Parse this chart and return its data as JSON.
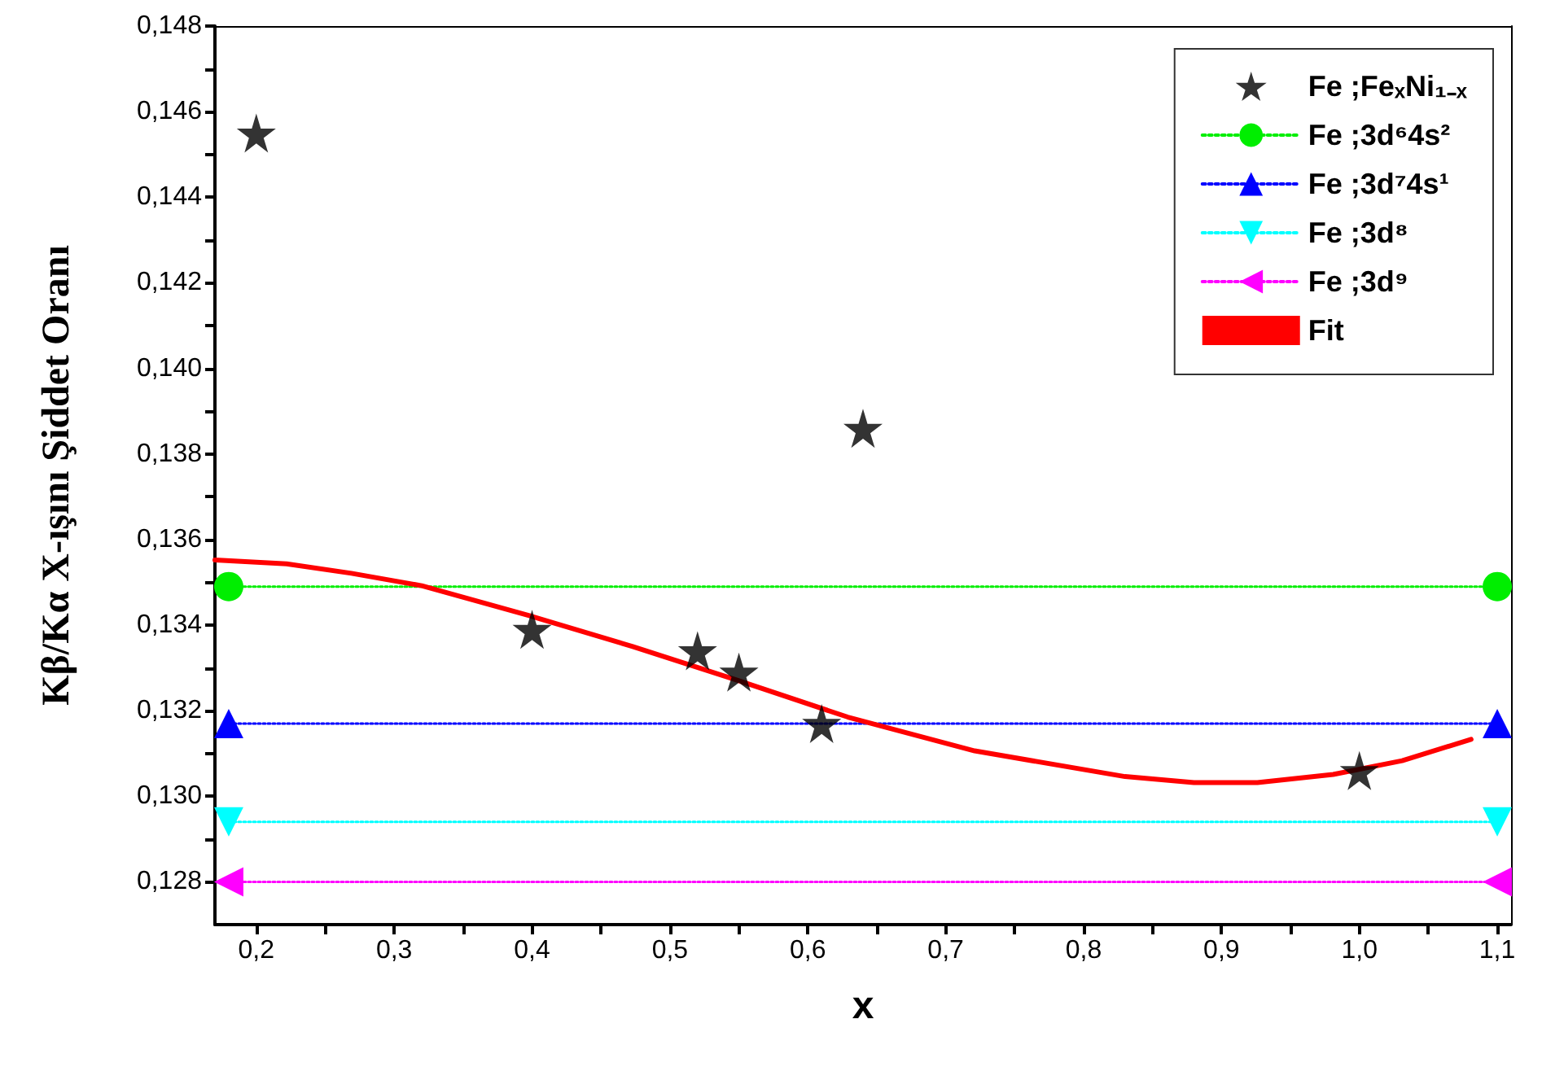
{
  "chart_data": {
    "type": "line",
    "xlabel": "x",
    "ylabel": "Kβ/Kα X-ışını Şiddet Oranı",
    "xlim": [
      0.17,
      1.11
    ],
    "ylim": [
      0.127,
      0.148
    ],
    "xticks": [
      {
        "value": 0.2,
        "label": "0,2"
      },
      {
        "value": 0.25,
        "label": null
      },
      {
        "value": 0.3,
        "label": "0,3"
      },
      {
        "value": 0.35,
        "label": null
      },
      {
        "value": 0.4,
        "label": "0,4"
      },
      {
        "value": 0.45,
        "label": null
      },
      {
        "value": 0.5,
        "label": "0,5"
      },
      {
        "value": 0.55,
        "label": null
      },
      {
        "value": 0.6,
        "label": "0,6"
      },
      {
        "value": 0.65,
        "label": null
      },
      {
        "value": 0.7,
        "label": "0,7"
      },
      {
        "value": 0.75,
        "label": null
      },
      {
        "value": 0.8,
        "label": "0,8"
      },
      {
        "value": 0.85,
        "label": null
      },
      {
        "value": 0.9,
        "label": "0,9"
      },
      {
        "value": 0.95,
        "label": null
      },
      {
        "value": 1.0,
        "label": "1,0"
      },
      {
        "value": 1.05,
        "label": null
      },
      {
        "value": 1.1,
        "label": "1,1"
      }
    ],
    "yticks": [
      {
        "value": 0.128,
        "label": "0,128"
      },
      {
        "value": 0.129,
        "label": null
      },
      {
        "value": 0.13,
        "label": "0,130"
      },
      {
        "value": 0.131,
        "label": null
      },
      {
        "value": 0.132,
        "label": "0,132"
      },
      {
        "value": 0.133,
        "label": null
      },
      {
        "value": 0.134,
        "label": "0,134"
      },
      {
        "value": 0.135,
        "label": null
      },
      {
        "value": 0.136,
        "label": "0,136"
      },
      {
        "value": 0.137,
        "label": null
      },
      {
        "value": 0.138,
        "label": "0,138"
      },
      {
        "value": 0.139,
        "label": null
      },
      {
        "value": 0.14,
        "label": "0,140"
      },
      {
        "value": 0.141,
        "label": null
      },
      {
        "value": 0.142,
        "label": "0,142"
      },
      {
        "value": 0.143,
        "label": null
      },
      {
        "value": 0.144,
        "label": "0,144"
      },
      {
        "value": 0.145,
        "label": null
      },
      {
        "value": 0.146,
        "label": "0,146"
      },
      {
        "value": 0.147,
        "label": null
      },
      {
        "value": 0.148,
        "label": "0,148"
      }
    ],
    "grid": false,
    "legend": "top right",
    "series": [
      {
        "name": "Fe ;FeₓNi₁₋ₓ",
        "type": "scatter",
        "marker": "star",
        "color": "#000000",
        "x": [
          0.2,
          0.4,
          0.52,
          0.55,
          0.61,
          0.64,
          1.0
        ],
        "values": [
          0.1455,
          0.1339,
          0.1334,
          0.1329,
          0.1317,
          0.1386,
          0.1306
        ]
      },
      {
        "name": "Fe ;3d⁶4s²",
        "marker": "circle",
        "line_style": "dotted",
        "color": "#00ee00",
        "x": [
          0.18,
          1.1
        ],
        "values": [
          0.1349,
          0.1349
        ]
      },
      {
        "name": "Fe ;3d⁷4s¹",
        "marker": "triangle",
        "line_style": "dotted",
        "color": "#0000ff",
        "x": [
          0.18,
          1.1
        ],
        "values": [
          0.1317,
          0.1317
        ]
      },
      {
        "name": "Fe ;3d⁸",
        "marker": "triangle_down",
        "line_style": "dotted",
        "color": "#00ffff",
        "x": [
          0.18,
          1.1
        ],
        "values": [
          0.1294,
          0.1294
        ]
      },
      {
        "name": "Fe ;3d⁹",
        "marker": "triangle_left",
        "line_style": "dotted",
        "color": "#ff00ff",
        "x": [
          0.18,
          1.1
        ],
        "values": [
          0.128,
          0.128
        ]
      },
      {
        "name": "Fit",
        "marker": "none",
        "line_style": "solid",
        "color": "#ff0000",
        "x": [
          0.17,
          0.222,
          0.269,
          0.32,
          0.398,
          0.473,
          0.55,
          0.629,
          0.721,
          0.83,
          0.88,
          0.926,
          0.981,
          1.031,
          1.081
        ],
        "values": [
          0.13552,
          0.13543,
          0.13521,
          0.13492,
          0.13422,
          0.1335,
          0.1327,
          0.13185,
          0.13106,
          0.13046,
          0.13032,
          0.13032,
          0.13051,
          0.13083,
          0.13133
        ]
      }
    ]
  }
}
